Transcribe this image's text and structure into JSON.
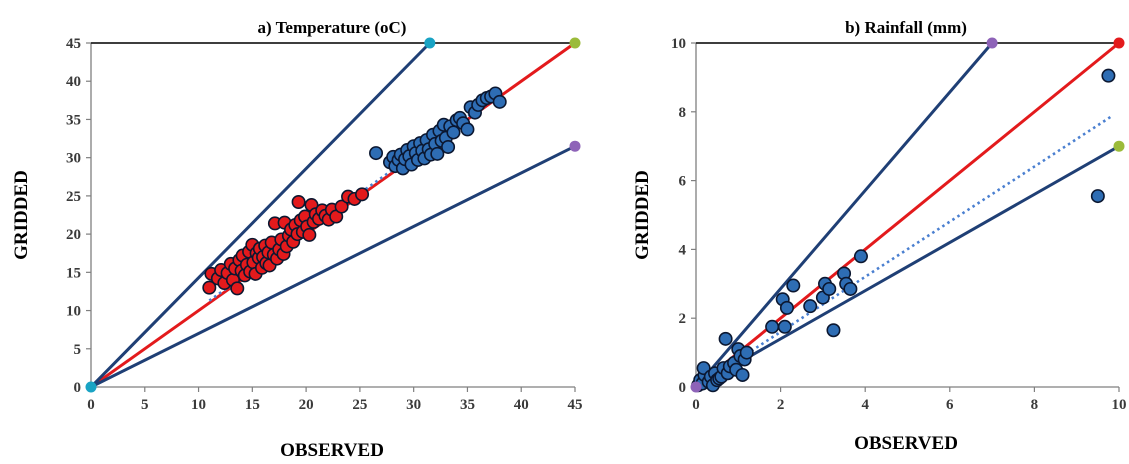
{
  "chart_data": [
    {
      "type": "scatter",
      "title": "a) Temperature (oC)",
      "xlabel": "OBSERVED",
      "ylabel": "GRIDDED",
      "xlim": [
        0,
        45
      ],
      "ylim": [
        0,
        45
      ],
      "xticks": [
        0,
        5,
        10,
        15,
        20,
        25,
        30,
        35,
        40,
        45
      ],
      "yticks": [
        0,
        5,
        10,
        15,
        20,
        25,
        30,
        35,
        40,
        45
      ],
      "grid": false,
      "colors": {
        "red_series": "#e31a1c",
        "blue_series": "#2e6db4",
        "line_1to1": "#e31a1c",
        "envelope": "#1f3f75",
        "trend": "#4a7fd0",
        "marker_start": "#19a3c4",
        "marker_end": "#9bbb3a",
        "marker_low": "#8e63b8"
      },
      "series": [
        {
          "color": "red",
          "points": [
            [
              11.0,
              13.0
            ],
            [
              11.2,
              14.8
            ],
            [
              11.8,
              14.2
            ],
            [
              12.1,
              15.3
            ],
            [
              12.4,
              13.6
            ],
            [
              12.7,
              14.9
            ],
            [
              13.0,
              16.1
            ],
            [
              13.2,
              14.0
            ],
            [
              13.4,
              15.5
            ],
            [
              13.6,
              12.9
            ],
            [
              13.8,
              16.6
            ],
            [
              14.0,
              15.2
            ],
            [
              14.1,
              17.2
            ],
            [
              14.3,
              14.6
            ],
            [
              14.5,
              16.0
            ],
            [
              14.7,
              17.7
            ],
            [
              14.8,
              15.1
            ],
            [
              15.0,
              18.6
            ],
            [
              15.1,
              16.3
            ],
            [
              15.3,
              14.8
            ],
            [
              15.4,
              17.5
            ],
            [
              15.6,
              16.9
            ],
            [
              15.7,
              18.1
            ],
            [
              15.9,
              15.6
            ],
            [
              16.0,
              17.0
            ],
            [
              16.2,
              18.5
            ],
            [
              16.3,
              16.2
            ],
            [
              16.5,
              17.6
            ],
            [
              16.6,
              15.9
            ],
            [
              16.8,
              18.9
            ],
            [
              17.0,
              17.3
            ],
            [
              17.1,
              21.4
            ],
            [
              17.3,
              16.8
            ],
            [
              17.5,
              18.0
            ],
            [
              17.7,
              19.3
            ],
            [
              17.9,
              17.4
            ],
            [
              18.0,
              21.5
            ],
            [
              18.2,
              18.4
            ],
            [
              18.4,
              19.8
            ],
            [
              18.6,
              20.6
            ],
            [
              18.8,
              19.0
            ],
            [
              19.0,
              21.2
            ],
            [
              19.2,
              20.0
            ],
            [
              19.3,
              24.2
            ],
            [
              19.5,
              21.8
            ],
            [
              19.7,
              20.3
            ],
            [
              19.9,
              22.3
            ],
            [
              20.1,
              21.0
            ],
            [
              20.3,
              19.9
            ],
            [
              20.5,
              23.8
            ],
            [
              20.7,
              21.6
            ],
            [
              20.9,
              22.6
            ],
            [
              21.2,
              22.0
            ],
            [
              21.5,
              23.1
            ],
            [
              21.8,
              22.4
            ],
            [
              22.1,
              21.9
            ],
            [
              22.4,
              23.2
            ],
            [
              22.8,
              22.3
            ],
            [
              23.3,
              23.6
            ],
            [
              23.9,
              24.9
            ],
            [
              24.5,
              24.6
            ],
            [
              25.2,
              25.2
            ]
          ]
        },
        {
          "color": "blue",
          "points": [
            [
              26.5,
              30.6
            ],
            [
              27.8,
              29.4
            ],
            [
              28.1,
              30.1
            ],
            [
              28.3,
              28.9
            ],
            [
              28.6,
              29.7
            ],
            [
              28.8,
              30.4
            ],
            [
              29.0,
              28.6
            ],
            [
              29.2,
              29.8
            ],
            [
              29.4,
              31.0
            ],
            [
              29.6,
              30.2
            ],
            [
              29.8,
              29.1
            ],
            [
              30.0,
              31.5
            ],
            [
              30.2,
              30.6
            ],
            [
              30.4,
              29.7
            ],
            [
              30.6,
              31.9
            ],
            [
              30.8,
              30.9
            ],
            [
              31.0,
              29.9
            ],
            [
              31.2,
              32.3
            ],
            [
              31.4,
              31.1
            ],
            [
              31.6,
              30.4
            ],
            [
              31.8,
              33.0
            ],
            [
              32.0,
              31.8
            ],
            [
              32.2,
              30.5
            ],
            [
              32.4,
              33.5
            ],
            [
              32.6,
              32.2
            ],
            [
              32.8,
              34.3
            ],
            [
              33.0,
              32.6
            ],
            [
              33.2,
              31.4
            ],
            [
              33.4,
              34.1
            ],
            [
              33.7,
              33.3
            ],
            [
              34.0,
              34.9
            ],
            [
              34.3,
              35.2
            ],
            [
              34.6,
              34.5
            ],
            [
              35.0,
              33.7
            ],
            [
              35.3,
              36.6
            ],
            [
              35.7,
              35.9
            ],
            [
              36.0,
              36.9
            ],
            [
              36.4,
              37.5
            ],
            [
              36.8,
              37.8
            ],
            [
              37.2,
              38.0
            ],
            [
              37.6,
              38.4
            ],
            [
              38.0,
              37.3
            ]
          ]
        }
      ],
      "lines": [
        {
          "name": "1:1",
          "color": "red",
          "from": [
            0,
            0
          ],
          "to": [
            45,
            45
          ]
        },
        {
          "name": "upper",
          "color": "navy",
          "from": [
            0,
            0
          ],
          "to": [
            31.5,
            45
          ]
        },
        {
          "name": "lower",
          "color": "navy",
          "from": [
            0,
            0
          ],
          "to": [
            45,
            31.5
          ]
        },
        {
          "name": "trend",
          "color": "dotted-blue",
          "from": [
            11,
            11.3
          ],
          "to": [
            38,
            38.4
          ]
        }
      ],
      "markers": [
        {
          "x": 0,
          "y": 0,
          "color": "cyan"
        },
        {
          "x": 31.5,
          "y": 45,
          "color": "cyan"
        },
        {
          "x": 45,
          "y": 45,
          "color": "green"
        },
        {
          "x": 45,
          "y": 31.5,
          "color": "purple"
        }
      ]
    },
    {
      "type": "scatter",
      "title": "b) Rainfall (mm)",
      "xlabel": "OBSERVED",
      "ylabel": "GRIDDED",
      "xlim": [
        0,
        10
      ],
      "ylim": [
        0,
        10
      ],
      "xticks": [
        0,
        2,
        4,
        6,
        8,
        10
      ],
      "yticks": [
        0,
        2,
        4,
        6,
        8,
        10
      ],
      "grid": false,
      "series": [
        {
          "color": "blue",
          "points": [
            [
              0.05,
              0.05
            ],
            [
              0.1,
              0.2
            ],
            [
              0.15,
              0.1
            ],
            [
              0.2,
              0.35
            ],
            [
              0.18,
              0.55
            ],
            [
              0.3,
              0.15
            ],
            [
              0.35,
              0.3
            ],
            [
              0.4,
              0.05
            ],
            [
              0.45,
              0.4
            ],
            [
              0.5,
              0.2
            ],
            [
              0.55,
              0.25
            ],
            [
              0.6,
              0.3
            ],
            [
              0.65,
              0.55
            ],
            [
              0.7,
              1.4
            ],
            [
              0.75,
              0.4
            ],
            [
              0.8,
              0.6
            ],
            [
              0.9,
              0.7
            ],
            [
              0.95,
              0.5
            ],
            [
              1.0,
              1.1
            ],
            [
              1.05,
              0.9
            ],
            [
              1.1,
              0.35
            ],
            [
              1.15,
              0.8
            ],
            [
              1.2,
              1.0
            ],
            [
              1.8,
              1.75
            ],
            [
              2.05,
              2.55
            ],
            [
              2.1,
              1.75
            ],
            [
              2.15,
              2.3
            ],
            [
              2.3,
              2.95
            ],
            [
              2.7,
              2.35
            ],
            [
              3.0,
              2.6
            ],
            [
              3.05,
              3.0
            ],
            [
              3.15,
              2.85
            ],
            [
              3.25,
              1.65
            ],
            [
              3.5,
              3.3
            ],
            [
              3.55,
              3.0
            ],
            [
              3.65,
              2.85
            ],
            [
              3.9,
              3.8
            ],
            [
              9.5,
              5.55
            ],
            [
              9.75,
              9.05
            ]
          ]
        }
      ],
      "lines": [
        {
          "name": "1:1",
          "color": "red",
          "from": [
            0,
            0
          ],
          "to": [
            10,
            10
          ]
        },
        {
          "name": "upper",
          "color": "navy",
          "from": [
            0,
            0
          ],
          "to": [
            7,
            10
          ]
        },
        {
          "name": "lower",
          "color": "navy",
          "from": [
            0,
            0
          ],
          "to": [
            10,
            7
          ]
        },
        {
          "name": "trend",
          "color": "dotted-blue",
          "from": [
            0,
            0
          ],
          "to": [
            9.8,
            7.85
          ]
        }
      ],
      "markers": [
        {
          "x": 0,
          "y": 0,
          "color": "purple"
        },
        {
          "x": 7,
          "y": 10,
          "color": "purple"
        },
        {
          "x": 10,
          "y": 10,
          "color": "red"
        },
        {
          "x": 10,
          "y": 7,
          "color": "green"
        }
      ]
    }
  ]
}
